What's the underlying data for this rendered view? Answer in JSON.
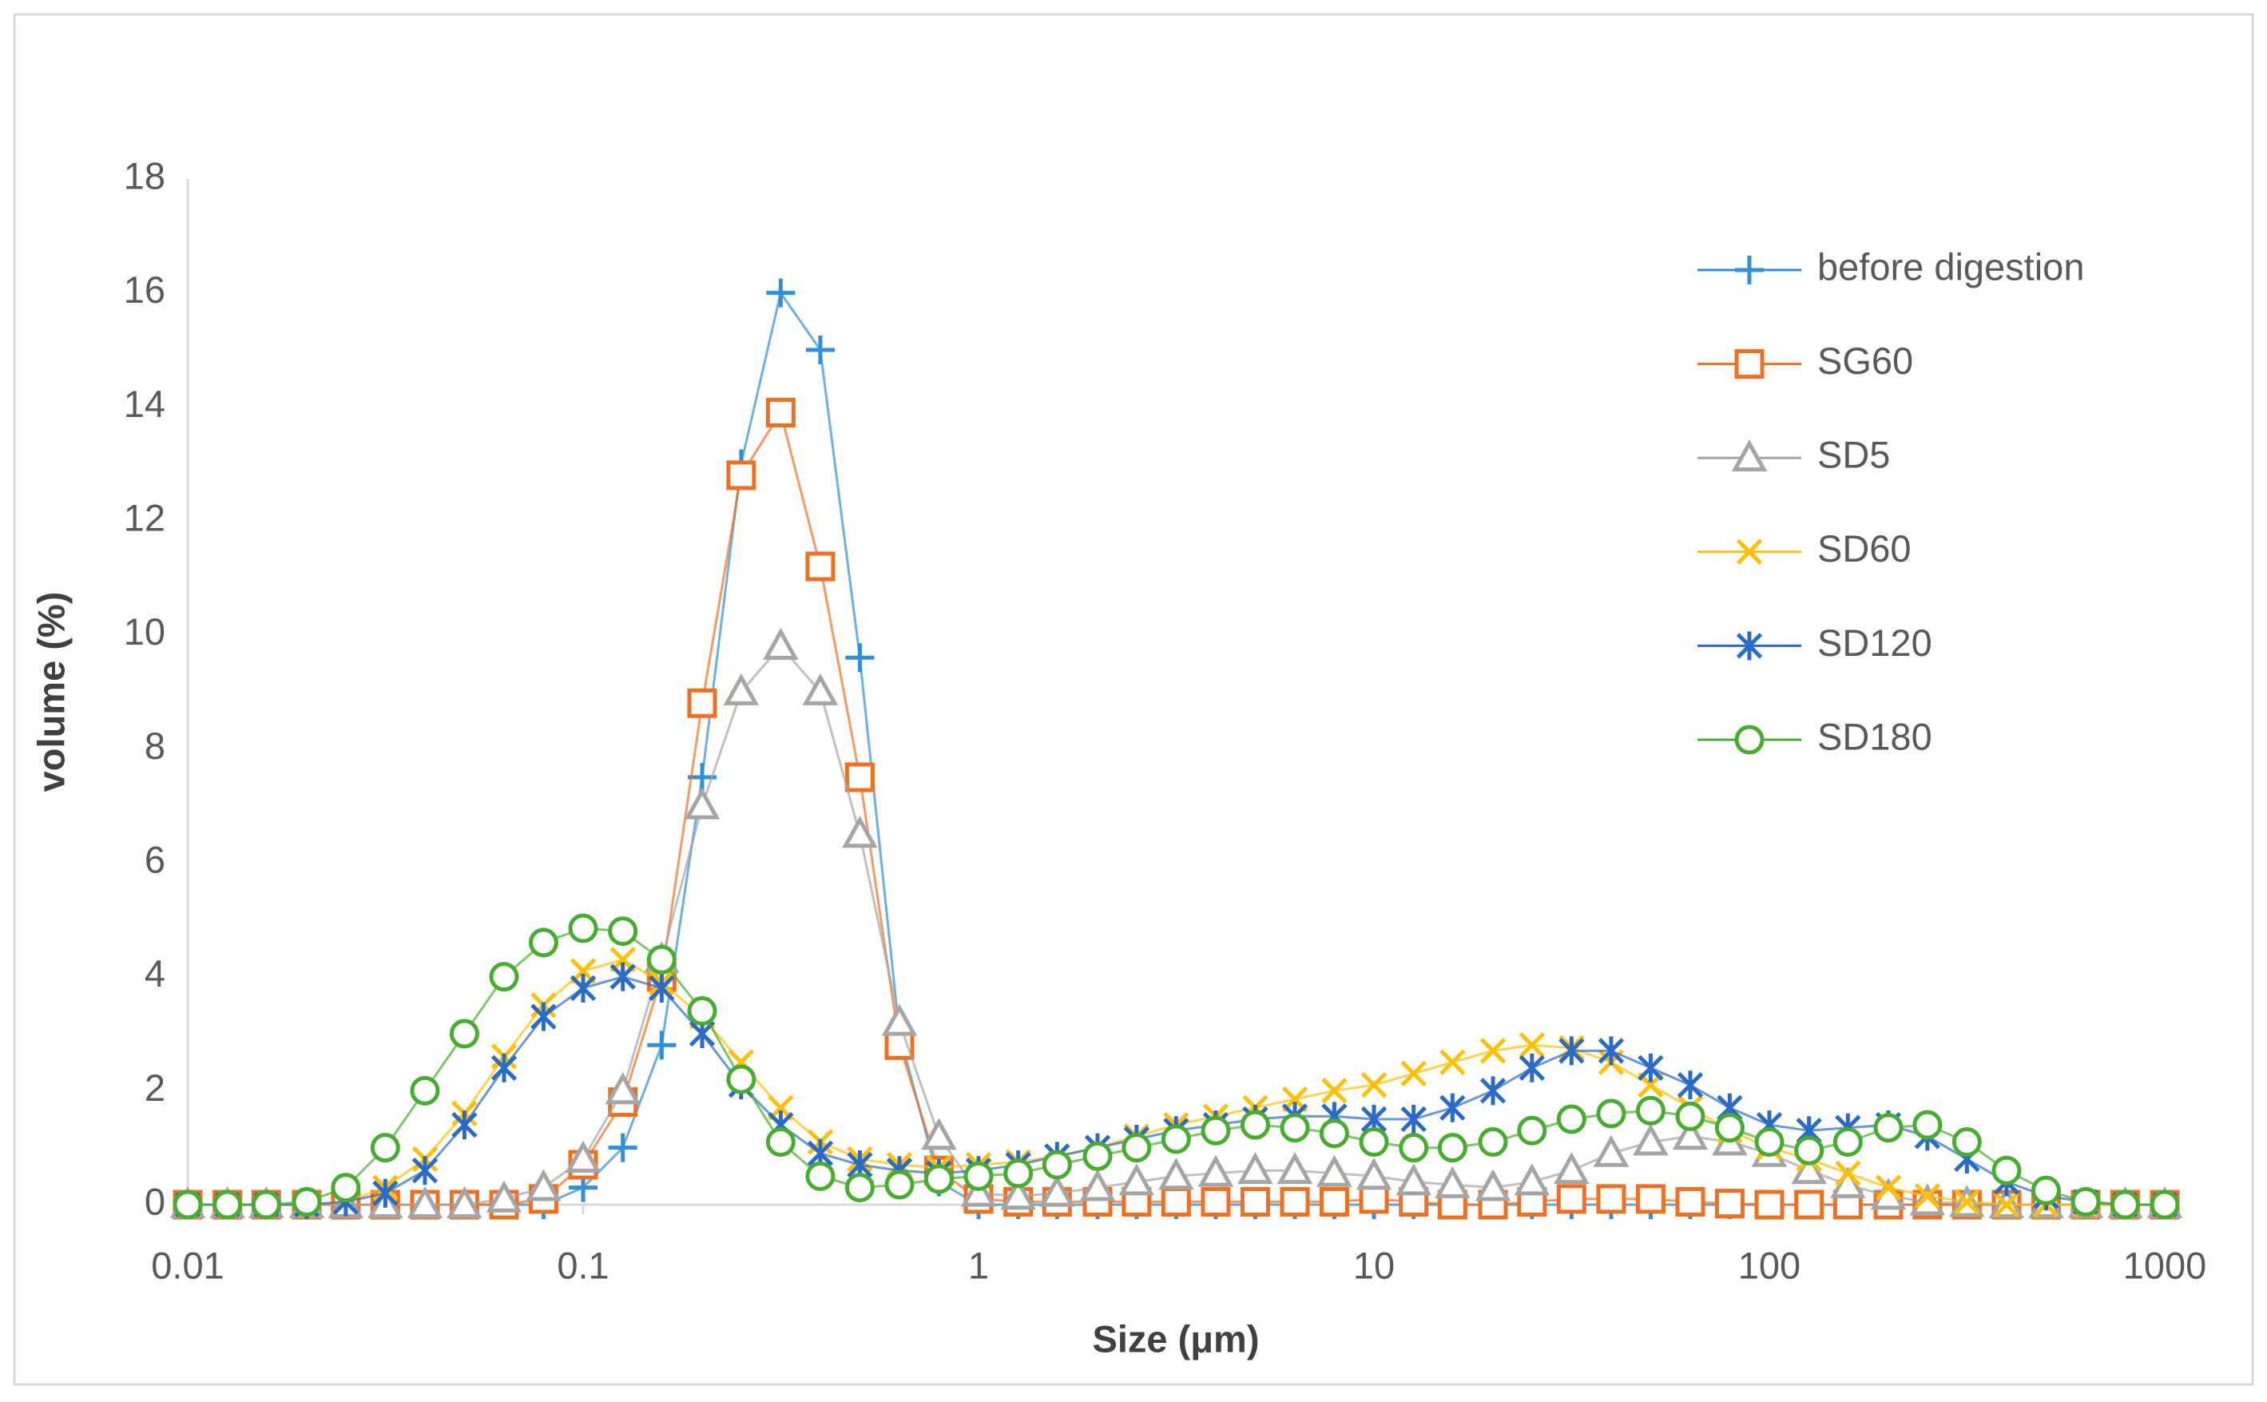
{
  "chart_data": {
    "type": "line",
    "x_label": "Size (μm)",
    "y_label": "volume (%)",
    "x_scale": "log",
    "x": [
      0.01,
      0.0126,
      0.0158,
      0.02,
      0.0251,
      0.0316,
      0.0398,
      0.0501,
      0.0631,
      0.0794,
      0.1,
      0.126,
      0.158,
      0.2,
      0.251,
      0.316,
      0.398,
      0.501,
      0.631,
      0.794,
      1,
      1.26,
      1.58,
      2,
      2.51,
      3.16,
      3.98,
      5.01,
      6.31,
      7.94,
      10,
      12.6,
      15.8,
      20,
      25.1,
      31.6,
      39.8,
      50.1,
      63.1,
      79.4,
      100,
      126,
      158,
      200,
      251,
      316,
      398,
      501,
      631,
      794,
      1000
    ],
    "series": [
      {
        "name": "before digestion",
        "color": "#2f8fd8",
        "marker": "plus",
        "values": [
          0,
          0,
          0,
          0,
          0,
          0,
          0,
          0,
          0,
          0,
          0.3,
          1.0,
          2.8,
          7.5,
          13,
          16,
          15,
          9.6,
          3.0,
          0.4,
          0,
          0,
          0,
          0,
          0,
          0,
          0,
          0,
          0,
          0,
          0,
          0,
          0,
          0,
          0,
          0,
          0,
          0,
          0,
          0,
          0,
          0,
          0,
          0,
          0,
          0,
          0,
          0,
          0,
          0,
          0
        ]
      },
      {
        "name": "SG60",
        "color": "#f07020",
        "marker": "square",
        "values": [
          0,
          0,
          0,
          0,
          0,
          0,
          0,
          0,
          0,
          0.1,
          0.7,
          1.8,
          4.0,
          8.8,
          12.8,
          13.9,
          11.2,
          7.5,
          2.8,
          0.6,
          0.1,
          0.05,
          0.05,
          0.05,
          0.05,
          0.05,
          0.05,
          0.05,
          0.05,
          0.05,
          0.1,
          0.05,
          0,
          0,
          0.05,
          0.1,
          0.1,
          0.1,
          0.05,
          0.02,
          0,
          0,
          0,
          0,
          0,
          0,
          0,
          0,
          0,
          0,
          0
        ]
      },
      {
        "name": "SD5",
        "color": "#a5a5a5",
        "marker": "triangle",
        "values": [
          0,
          0,
          0,
          0,
          0,
          0,
          0,
          0,
          0.1,
          0.3,
          0.8,
          2.0,
          4.3,
          7.0,
          9.0,
          9.8,
          9.0,
          6.5,
          3.2,
          1.2,
          0.2,
          0.15,
          0.2,
          0.3,
          0.4,
          0.5,
          0.55,
          0.6,
          0.6,
          0.55,
          0.5,
          0.4,
          0.35,
          0.3,
          0.4,
          0.6,
          0.9,
          1.1,
          1.2,
          1.1,
          0.9,
          0.6,
          0.35,
          0.15,
          0.05,
          0.02,
          0,
          0,
          0,
          0,
          0
        ]
      },
      {
        "name": "SD60",
        "color": "#ffc000",
        "marker": "x",
        "values": [
          0,
          0,
          0,
          0,
          0.05,
          0.3,
          0.8,
          1.6,
          2.6,
          3.5,
          4.1,
          4.3,
          3.9,
          3.3,
          2.5,
          1.7,
          1.1,
          0.8,
          0.7,
          0.65,
          0.7,
          0.75,
          0.85,
          1.0,
          1.2,
          1.4,
          1.55,
          1.7,
          1.85,
          2.0,
          2.1,
          2.3,
          2.5,
          2.7,
          2.8,
          2.75,
          2.5,
          2.1,
          1.7,
          1.3,
          1.0,
          0.8,
          0.55,
          0.3,
          0.15,
          0.05,
          0,
          0,
          0,
          0,
          0
        ]
      },
      {
        "name": "SD120",
        "color": "#2a6bc6",
        "marker": "star",
        "values": [
          0,
          0,
          0,
          0,
          0.05,
          0.2,
          0.6,
          1.4,
          2.4,
          3.3,
          3.8,
          4.0,
          3.8,
          3.0,
          2.1,
          1.4,
          0.9,
          0.7,
          0.6,
          0.55,
          0.6,
          0.7,
          0.85,
          1.0,
          1.15,
          1.3,
          1.4,
          1.5,
          1.55,
          1.55,
          1.5,
          1.5,
          1.7,
          2.0,
          2.4,
          2.7,
          2.7,
          2.4,
          2.1,
          1.7,
          1.4,
          1.3,
          1.35,
          1.4,
          1.2,
          0.8,
          0.4,
          0.15,
          0.05,
          0,
          0
        ]
      },
      {
        "name": "SD180",
        "color": "#47ad2f",
        "marker": "circle",
        "values": [
          0,
          0,
          0,
          0.05,
          0.3,
          1.0,
          2.0,
          3.0,
          4.0,
          4.6,
          4.85,
          4.8,
          4.3,
          3.4,
          2.2,
          1.1,
          0.5,
          0.3,
          0.35,
          0.45,
          0.5,
          0.55,
          0.7,
          0.85,
          1.0,
          1.15,
          1.3,
          1.4,
          1.35,
          1.25,
          1.1,
          1.0,
          1.0,
          1.1,
          1.3,
          1.5,
          1.6,
          1.65,
          1.55,
          1.35,
          1.1,
          0.95,
          1.1,
          1.35,
          1.4,
          1.1,
          0.6,
          0.25,
          0.05,
          0,
          0
        ]
      }
    ],
    "xlim": [
      0.01,
      1000
    ],
    "xticks": [
      0.01,
      0.1,
      1,
      10,
      100,
      1000
    ],
    "ylim": [
      0,
      18
    ],
    "yticks": [
      0,
      2,
      4,
      6,
      8,
      10,
      12,
      14,
      16,
      18
    ],
    "grid": false,
    "legend": "right"
  }
}
